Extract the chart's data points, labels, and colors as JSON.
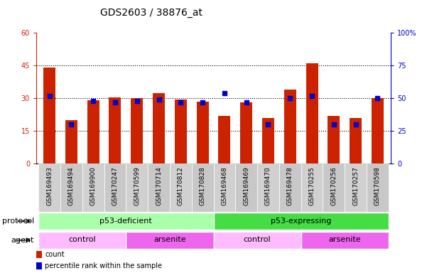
{
  "title": "GDS2603 / 38876_at",
  "samples": [
    "GSM169493",
    "GSM169494",
    "GSM169900",
    "GSM170247",
    "GSM170599",
    "GSM170714",
    "GSM170812",
    "GSM170828",
    "GSM169468",
    "GSM169469",
    "GSM169470",
    "GSM169478",
    "GSM170255",
    "GSM170256",
    "GSM170257",
    "GSM170598"
  ],
  "count_values": [
    44,
    20,
    29,
    30.5,
    30,
    32.5,
    29.5,
    28.5,
    22,
    28,
    21,
    34,
    46,
    22,
    21,
    30
  ],
  "percentile_values": [
    52,
    30,
    48,
    47,
    48,
    49,
    47,
    47,
    54,
    47,
    30,
    50,
    52,
    30,
    30,
    50
  ],
  "left_ylim": [
    0,
    60
  ],
  "right_ylim": [
    0,
    100
  ],
  "left_yticks": [
    0,
    15,
    30,
    45,
    60
  ],
  "right_yticks": [
    0,
    25,
    50,
    75,
    100
  ],
  "right_yticklabels": [
    "0",
    "25",
    "50",
    "75",
    "100%"
  ],
  "bar_color": "#cc2200",
  "percentile_color": "#0000cc",
  "bg_color": "#ffffff",
  "plot_bg": "#ffffff",
  "grid_color": "black",
  "protocol_groups": [
    {
      "label": "p53-deficient",
      "start": 0,
      "end": 7,
      "color": "#aaffaa"
    },
    {
      "label": "p53-expressing",
      "start": 8,
      "end": 15,
      "color": "#44dd44"
    }
  ],
  "agent_groups": [
    {
      "label": "control",
      "start": 0,
      "end": 3,
      "color": "#ffbbff"
    },
    {
      "label": "arsenite",
      "start": 4,
      "end": 7,
      "color": "#ee66ee"
    },
    {
      "label": "control",
      "start": 8,
      "end": 11,
      "color": "#ffbbff"
    },
    {
      "label": "arsenite",
      "start": 12,
      "end": 15,
      "color": "#ee66ee"
    }
  ],
  "protocol_label": "protocol",
  "agent_label": "agent",
  "legend_count_label": "count",
  "legend_percentile_label": "percentile rank within the sample",
  "bar_width": 0.55,
  "tick_fontsize": 7,
  "label_fontsize": 8,
  "title_fontsize": 10,
  "xticklabel_area_color": "#d8d8d8"
}
